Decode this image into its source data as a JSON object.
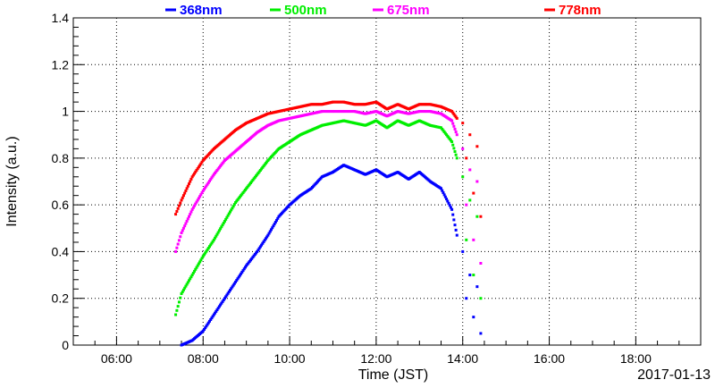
{
  "chart_data": {
    "type": "scatter",
    "xlabel": "Time (JST)",
    "ylabel": "Intensity (a.u.)",
    "date_label": "2017-01-13",
    "xlim": [
      "05:00",
      "19:30"
    ],
    "ylim": [
      0,
      1.4
    ],
    "x_ticks": [
      "06:00",
      "08:00",
      "10:00",
      "12:00",
      "14:00",
      "16:00",
      "18:00"
    ],
    "y_ticks": [
      "0",
      "0.2",
      "0.4",
      "0.6",
      "0.8",
      "1",
      "1.2",
      "1.4"
    ],
    "grid": true,
    "legend_position": "top",
    "series": [
      {
        "name": "368nm",
        "color": "#0000ff",
        "points": [
          [
            "07:30",
            0.0
          ],
          [
            "07:45",
            0.02
          ],
          [
            "08:00",
            0.06
          ],
          [
            "08:15",
            0.13
          ],
          [
            "08:30",
            0.2
          ],
          [
            "08:45",
            0.27
          ],
          [
            "09:00",
            0.34
          ],
          [
            "09:15",
            0.4
          ],
          [
            "09:30",
            0.47
          ],
          [
            "09:45",
            0.55
          ],
          [
            "10:00",
            0.6
          ],
          [
            "10:15",
            0.64
          ],
          [
            "10:30",
            0.67
          ],
          [
            "10:45",
            0.72
          ],
          [
            "11:00",
            0.74
          ],
          [
            "11:15",
            0.77
          ],
          [
            "11:30",
            0.75
          ],
          [
            "11:45",
            0.73
          ],
          [
            "12:00",
            0.75
          ],
          [
            "12:15",
            0.72
          ],
          [
            "12:30",
            0.74
          ],
          [
            "12:45",
            0.71
          ],
          [
            "13:00",
            0.74
          ],
          [
            "13:15",
            0.7
          ],
          [
            "13:30",
            0.67
          ],
          [
            "13:45",
            0.58
          ],
          [
            "13:52",
            0.47
          ],
          [
            "14:00",
            0.4
          ],
          [
            "14:05",
            0.2
          ],
          [
            "14:10",
            0.3
          ],
          [
            "14:15",
            0.12
          ],
          [
            "14:20",
            0.25
          ],
          [
            "14:25",
            0.05
          ]
        ]
      },
      {
        "name": "500nm",
        "color": "#00ee00",
        "points": [
          [
            "07:22",
            0.13
          ],
          [
            "07:30",
            0.22
          ],
          [
            "07:45",
            0.3
          ],
          [
            "08:00",
            0.38
          ],
          [
            "08:15",
            0.45
          ],
          [
            "08:30",
            0.53
          ],
          [
            "08:45",
            0.61
          ],
          [
            "09:00",
            0.67
          ],
          [
            "09:15",
            0.73
          ],
          [
            "09:30",
            0.79
          ],
          [
            "09:45",
            0.84
          ],
          [
            "10:00",
            0.87
          ],
          [
            "10:15",
            0.9
          ],
          [
            "10:30",
            0.92
          ],
          [
            "10:45",
            0.94
          ],
          [
            "11:00",
            0.95
          ],
          [
            "11:15",
            0.96
          ],
          [
            "11:30",
            0.95
          ],
          [
            "11:45",
            0.94
          ],
          [
            "12:00",
            0.96
          ],
          [
            "12:15",
            0.93
          ],
          [
            "12:30",
            0.96
          ],
          [
            "12:45",
            0.94
          ],
          [
            "13:00",
            0.96
          ],
          [
            "13:15",
            0.94
          ],
          [
            "13:30",
            0.93
          ],
          [
            "13:45",
            0.87
          ],
          [
            "13:52",
            0.8
          ],
          [
            "14:00",
            0.72
          ],
          [
            "14:05",
            0.45
          ],
          [
            "14:10",
            0.62
          ],
          [
            "14:15",
            0.3
          ],
          [
            "14:20",
            0.55
          ],
          [
            "14:25",
            0.2
          ]
        ]
      },
      {
        "name": "675nm",
        "color": "#ff00ff",
        "points": [
          [
            "07:22",
            0.4
          ],
          [
            "07:30",
            0.48
          ],
          [
            "07:45",
            0.58
          ],
          [
            "08:00",
            0.66
          ],
          [
            "08:15",
            0.73
          ],
          [
            "08:30",
            0.79
          ],
          [
            "08:45",
            0.83
          ],
          [
            "09:00",
            0.87
          ],
          [
            "09:15",
            0.91
          ],
          [
            "09:30",
            0.94
          ],
          [
            "09:45",
            0.96
          ],
          [
            "10:00",
            0.97
          ],
          [
            "10:15",
            0.98
          ],
          [
            "10:30",
            0.99
          ],
          [
            "10:45",
            1.0
          ],
          [
            "11:00",
            1.0
          ],
          [
            "11:15",
            1.0
          ],
          [
            "11:30",
            1.0
          ],
          [
            "11:45",
            0.99
          ],
          [
            "12:00",
            1.0
          ],
          [
            "12:15",
            0.98
          ],
          [
            "12:30",
            1.0
          ],
          [
            "12:45",
            0.99
          ],
          [
            "13:00",
            1.0
          ],
          [
            "13:15",
            1.0
          ],
          [
            "13:30",
            0.99
          ],
          [
            "13:45",
            0.96
          ],
          [
            "13:52",
            0.9
          ],
          [
            "14:00",
            0.84
          ],
          [
            "14:05",
            0.6
          ],
          [
            "14:10",
            0.75
          ],
          [
            "14:15",
            0.45
          ],
          [
            "14:20",
            0.7
          ],
          [
            "14:25",
            0.35
          ]
        ]
      },
      {
        "name": "778nm",
        "color": "#ff0000",
        "points": [
          [
            "07:22",
            0.56
          ],
          [
            "07:30",
            0.62
          ],
          [
            "07:45",
            0.72
          ],
          [
            "08:00",
            0.79
          ],
          [
            "08:15",
            0.84
          ],
          [
            "08:30",
            0.88
          ],
          [
            "08:45",
            0.92
          ],
          [
            "09:00",
            0.95
          ],
          [
            "09:15",
            0.97
          ],
          [
            "09:30",
            0.99
          ],
          [
            "09:45",
            1.0
          ],
          [
            "10:00",
            1.01
          ],
          [
            "10:15",
            1.02
          ],
          [
            "10:30",
            1.03
          ],
          [
            "10:45",
            1.03
          ],
          [
            "11:00",
            1.04
          ],
          [
            "11:15",
            1.04
          ],
          [
            "11:30",
            1.03
          ],
          [
            "11:45",
            1.03
          ],
          [
            "12:00",
            1.04
          ],
          [
            "12:15",
            1.01
          ],
          [
            "12:30",
            1.03
          ],
          [
            "12:45",
            1.01
          ],
          [
            "13:00",
            1.03
          ],
          [
            "13:15",
            1.03
          ],
          [
            "13:30",
            1.02
          ],
          [
            "13:45",
            1.0
          ],
          [
            "13:52",
            0.97
          ],
          [
            "14:00",
            0.95
          ],
          [
            "14:05",
            0.8
          ],
          [
            "14:10",
            0.9
          ],
          [
            "14:15",
            0.65
          ],
          [
            "14:20",
            0.85
          ],
          [
            "14:25",
            0.55
          ]
        ]
      }
    ]
  }
}
